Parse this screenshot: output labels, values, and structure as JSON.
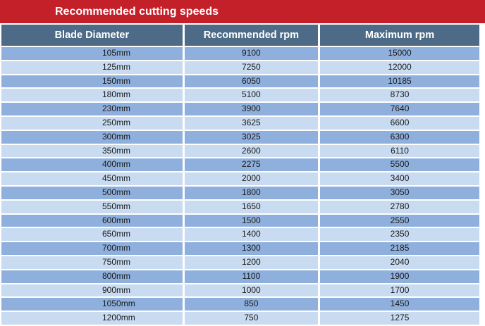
{
  "title": "Recommended cutting speeds",
  "columns": [
    "Blade Diameter",
    "Recommended rpm",
    "Maximum rpm"
  ],
  "rows": [
    [
      "105mm",
      "9100",
      "15000"
    ],
    [
      "125mm",
      "7250",
      "12000"
    ],
    [
      "150mm",
      "6050",
      "10185"
    ],
    [
      "180mm",
      "5100",
      "8730"
    ],
    [
      "230mm",
      "3900",
      "7640"
    ],
    [
      "250mm",
      "3625",
      "6600"
    ],
    [
      "300mm",
      "3025",
      "6300"
    ],
    [
      "350mm",
      "2600",
      "6110"
    ],
    [
      "400mm",
      "2275",
      "5500"
    ],
    [
      "450mm",
      "2000",
      "3400"
    ],
    [
      "500mm",
      "1800",
      "3050"
    ],
    [
      "550mm",
      "1650",
      "2780"
    ],
    [
      "600mm",
      "1500",
      "2550"
    ],
    [
      "650mm",
      "1400",
      "2350"
    ],
    [
      "700mm",
      "1300",
      "2185"
    ],
    [
      "750mm",
      "1200",
      "2040"
    ],
    [
      "800mm",
      "1100",
      "1900"
    ],
    [
      "900mm",
      "1000",
      "1700"
    ],
    [
      "1050mm",
      "850",
      "1450"
    ],
    [
      "1200mm",
      "750",
      "1275"
    ]
  ],
  "colors": {
    "banner": "#c4202a",
    "header": "#4d6b86",
    "row_dark": "#8fb0dd",
    "row_light": "#c8dbf0"
  }
}
